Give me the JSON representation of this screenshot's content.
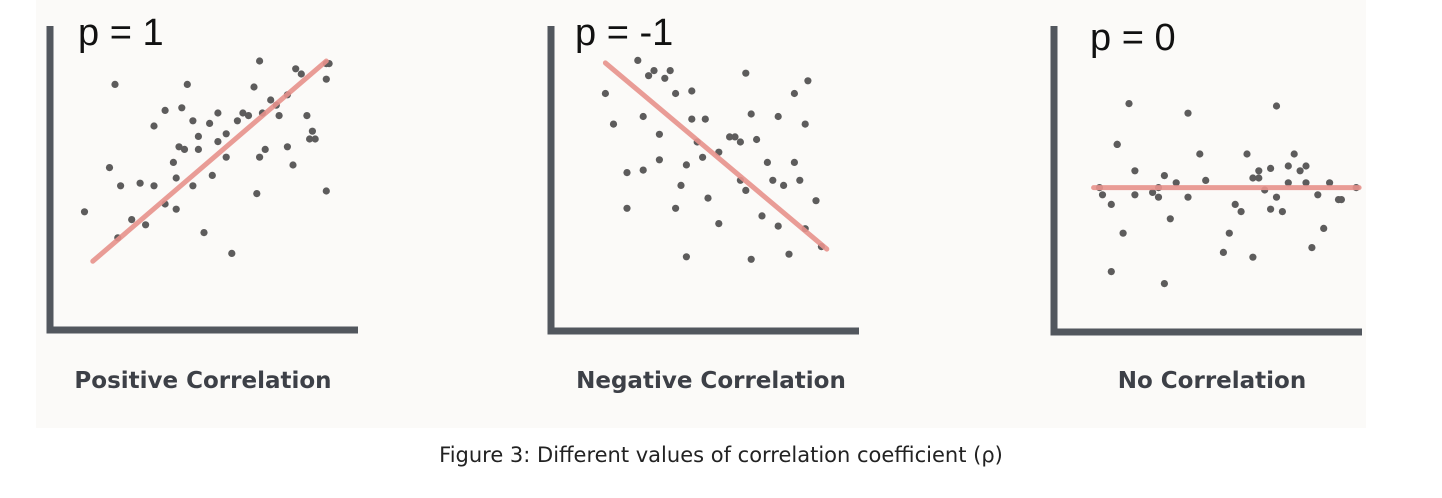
{
  "caption": "Figure 3: Different values of correlation coefficient (ρ)",
  "colors": {
    "axis": "#52575e",
    "point": "#5d5c5c",
    "fit_line": "#e8928c",
    "panel_background": "#fbfaf8"
  },
  "chart_data": [
    {
      "type": "scatter",
      "title": "Positive Correlation",
      "annotation": "p = 1",
      "xlim": [
        0,
        100
      ],
      "ylim": [
        0,
        100
      ],
      "grid": false,
      "fit_line": {
        "x": [
          10,
          94
        ],
        "y": [
          13,
          90
        ]
      },
      "points": {
        "x": [
          7,
          18,
          16,
          19,
          20,
          24,
          27,
          29,
          32,
          32,
          36,
          36,
          39,
          40,
          40,
          41,
          42,
          43,
          44,
          46,
          46,
          48,
          48,
          50,
          52,
          53,
          55,
          55,
          58,
          58,
          60,
          62,
          64,
          66,
          68,
          69,
          70,
          70,
          71,
          72,
          74,
          76,
          77,
          80,
          80,
          82,
          83,
          85,
          87,
          88,
          89,
          90,
          94,
          94,
          94,
          95
        ],
        "x_note": "arbitrary units, axes unlabeled",
        "y": [
          32,
          81,
          49,
          22,
          42,
          29,
          43,
          27,
          65,
          42,
          71,
          35,
          51,
          45,
          33,
          57,
          72,
          56,
          81,
          42,
          67,
          61,
          56,
          24,
          66,
          46,
          70,
          59,
          62,
          53,
          16,
          67,
          70,
          69,
          80,
          39,
          90,
          53,
          70,
          56,
          75,
          73,
          69,
          77,
          57,
          50,
          87,
          85,
          69,
          60,
          63,
          60,
          40,
          83,
          89,
          89
        ]
      }
    },
    {
      "type": "scatter",
      "title": "Negative Correlation",
      "annotation": "p = -1",
      "xlim": [
        0,
        100
      ],
      "ylim": [
        0,
        100
      ],
      "grid": false,
      "fit_line": {
        "x": [
          12,
          94
        ],
        "y": [
          91,
          18
        ]
      },
      "points": {
        "x": [
          12,
          15,
          20,
          20,
          24,
          26,
          26,
          28,
          30,
          32,
          32,
          34,
          36,
          38,
          38,
          40,
          42,
          42,
          44,
          44,
          46,
          48,
          49,
          50,
          54,
          54,
          58,
          60,
          62,
          62,
          64,
          64,
          66,
          66,
          68,
          70,
          72,
          74,
          76,
          76,
          78,
          80,
          82,
          82,
          84,
          86,
          86,
          87,
          90,
          92
        ],
        "y": [
          79,
          67,
          48,
          34,
          92,
          70,
          49,
          86,
          88,
          63,
          53,
          85,
          88,
          79,
          34,
          43,
          15,
          51,
          80,
          69,
          60,
          54,
          69,
          38,
          28,
          56,
          62,
          62,
          45,
          60,
          87,
          41,
          14,
          71,
          61,
          31,
          52,
          45,
          70,
          27,
          43,
          16,
          52,
          79,
          45,
          67,
          26,
          84,
          37,
          19
        ]
      }
    },
    {
      "type": "scatter",
      "title": "No Correlation",
      "annotation": "p = 0",
      "xlim": [
        0,
        100
      ],
      "ylim": [
        0,
        100
      ],
      "grid": false,
      "fit_line": {
        "x": [
          8,
          98
        ],
        "y": [
          51,
          51
        ]
      },
      "points": {
        "x": [
          10,
          11,
          14,
          14,
          16,
          16,
          18,
          20,
          22,
          22,
          28,
          30,
          30,
          32,
          32,
          34,
          36,
          40,
          40,
          44,
          46,
          52,
          54,
          56,
          58,
          60,
          62,
          62,
          64,
          64,
          66,
          68,
          68,
          70,
          70,
          72,
          74,
          74,
          76,
          78,
          80,
          80,
          82,
          84,
          86,
          88,
          91,
          92,
          97
        ],
        "y": [
          51,
          48,
          44,
          16,
          69,
          69,
          32,
          86,
          58,
          48,
          49,
          47,
          51,
          11,
          56,
          38,
          53,
          47,
          82,
          65,
          54,
          24,
          32,
          44,
          41,
          65,
          55,
          22,
          55,
          58,
          50,
          42,
          59,
          47,
          85,
          41,
          53,
          60,
          65,
          58,
          53,
          60,
          26,
          48,
          34,
          53,
          46,
          46,
          51
        ]
      }
    }
  ]
}
